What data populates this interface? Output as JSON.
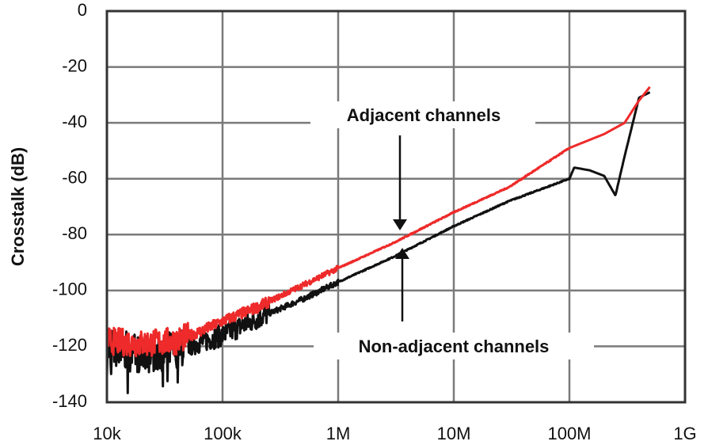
{
  "chart_data": {
    "type": "line",
    "title": "",
    "xlabel": "",
    "ylabel": "Crosstalk (dB)",
    "xscale": "log",
    "xlim": [
      10000,
      1000000000
    ],
    "ylim": [
      -140,
      0
    ],
    "grid": true,
    "legend": "none (inline annotations)",
    "x_ticks": [
      "10k",
      "100k",
      "1M",
      "10M",
      "100M",
      "1G"
    ],
    "y_ticks": [
      "0",
      "-20",
      "-40",
      "-60",
      "-80",
      "-100",
      "-120",
      "-140"
    ],
    "series": [
      {
        "name": "Adjacent channels",
        "color": "#ee2a2a",
        "x": [
          10000,
          20000,
          40000,
          70000,
          100000,
          200000,
          500000,
          1000000,
          3000000,
          10000000,
          30000000,
          100000000,
          200000000,
          300000000,
          400000000,
          500000000
        ],
        "y": [
          -118,
          -119,
          -118,
          -114,
          -111,
          -106,
          -98,
          -92,
          -83,
          -72,
          -63,
          -49,
          -44,
          -40,
          -32,
          -27
        ]
      },
      {
        "name": "Non-adjacent channels",
        "color": "#111111",
        "x": [
          10000,
          20000,
          40000,
          70000,
          100000,
          200000,
          500000,
          1000000,
          3000000,
          10000000,
          30000000,
          100000000,
          110000000,
          150000000,
          200000000,
          250000000,
          300000000,
          400000000,
          500000000
        ],
        "y": [
          -120,
          -123,
          -121,
          -118,
          -116,
          -110,
          -103,
          -97,
          -88,
          -77,
          -68,
          -60,
          -56,
          -57,
          -59,
          -66,
          -52,
          -31,
          -29
        ]
      }
    ],
    "annotations": [
      {
        "text": "Adjacent channels",
        "arrow_to": {
          "x": 4000000,
          "y": -80,
          "series": "Adjacent channels"
        },
        "direction": "down"
      },
      {
        "text": "Non-adjacent channels",
        "arrow_to": {
          "x": 4000000,
          "y": -86,
          "series": "Non-adjacent channels"
        },
        "direction": "up"
      }
    ]
  },
  "colors": {
    "adjacent": "#ee2a2a",
    "non_adjacent": "#111111",
    "grid": "#7a7a7a",
    "frame": "#333333"
  }
}
